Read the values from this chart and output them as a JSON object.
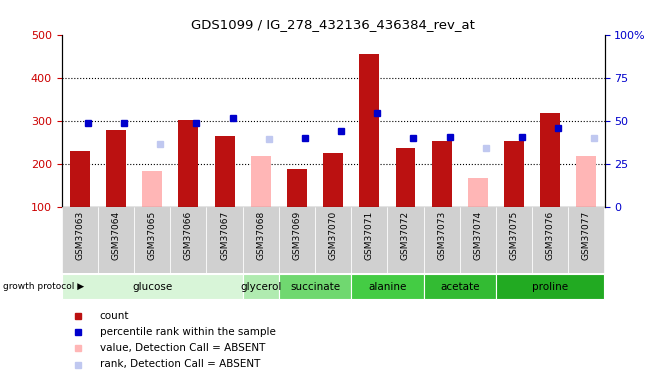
{
  "title": "GDS1099 / IG_278_432136_436384_rev_at",
  "samples": [
    "GSM37063",
    "GSM37064",
    "GSM37065",
    "GSM37066",
    "GSM37067",
    "GSM37068",
    "GSM37069",
    "GSM37070",
    "GSM37071",
    "GSM37072",
    "GSM37073",
    "GSM37074",
    "GSM37075",
    "GSM37076",
    "GSM37077"
  ],
  "count_values": [
    230,
    280,
    null,
    302,
    265,
    null,
    190,
    227,
    455,
    237,
    255,
    null,
    255,
    320,
    null
  ],
  "rank_values": [
    295,
    295,
    null,
    295,
    308,
    null,
    260,
    278,
    318,
    262,
    263,
    null,
    263,
    285,
    null
  ],
  "absent_value_values": [
    null,
    null,
    185,
    null,
    null,
    218,
    null,
    null,
    null,
    null,
    null,
    168,
    null,
    null,
    220
  ],
  "absent_rank_values": [
    null,
    null,
    248,
    null,
    null,
    258,
    null,
    null,
    null,
    null,
    null,
    238,
    null,
    null,
    260
  ],
  "group_data": [
    {
      "label": "glucose",
      "indices": [
        0,
        1,
        2,
        3,
        4
      ],
      "color": "#d8f5d8"
    },
    {
      "label": "glycerol",
      "indices": [
        5
      ],
      "color": "#b0ebb0"
    },
    {
      "label": "succinate",
      "indices": [
        6,
        7
      ],
      "color": "#70d870"
    },
    {
      "label": "alanine",
      "indices": [
        8,
        9
      ],
      "color": "#44cc44"
    },
    {
      "label": "acetate",
      "indices": [
        10,
        11
      ],
      "color": "#33bb33"
    },
    {
      "label": "proline",
      "indices": [
        12,
        13,
        14
      ],
      "color": "#22aa22"
    }
  ],
  "ylim_left": [
    100,
    500
  ],
  "ylim_right": [
    0,
    100
  ],
  "yticks_left": [
    100,
    200,
    300,
    400,
    500
  ],
  "yticks_right": [
    0,
    25,
    50,
    75,
    100
  ],
  "count_color": "#bb1111",
  "rank_color": "#0000cc",
  "absent_value_color": "#ffb6b6",
  "absent_rank_color": "#c0c8f0",
  "sample_bg_color": "#d0d0d0",
  "bgcolor": "#ffffff",
  "ylabel_left_color": "#cc0000",
  "ylabel_right_color": "#0000cc",
  "grid_dotted_color": "#000000",
  "legend_items": [
    {
      "color": "#bb1111",
      "label": "count"
    },
    {
      "color": "#0000cc",
      "label": "percentile rank within the sample"
    },
    {
      "color": "#ffb6b6",
      "label": "value, Detection Call = ABSENT"
    },
    {
      "color": "#c0c8f0",
      "label": "rank, Detection Call = ABSENT"
    }
  ]
}
